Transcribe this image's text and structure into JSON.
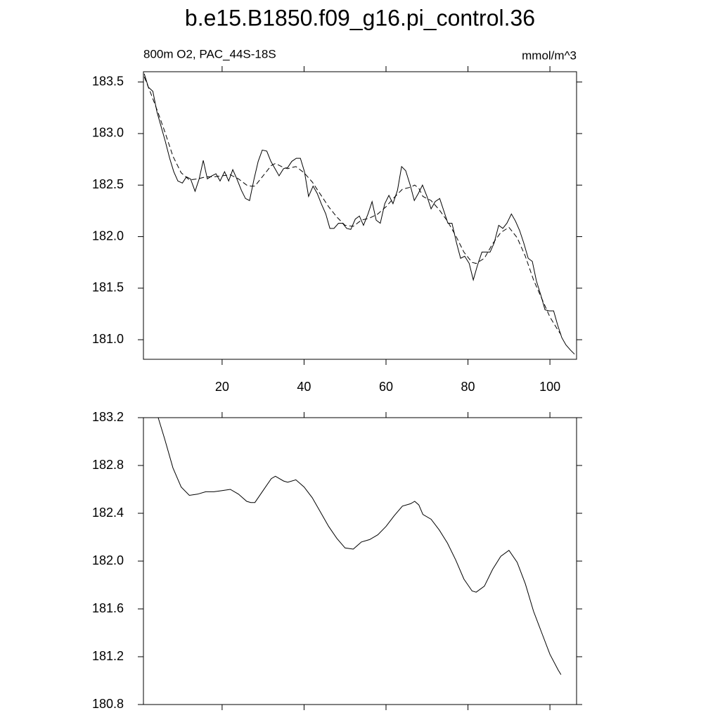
{
  "chart_data": [
    {
      "type": "line",
      "title": "b.e15.B1850.f09_g16.pi_control.36",
      "subtitle": "800m O2, PAC_44S-18S",
      "units": "mmol/m^3",
      "xlim": [
        0.8,
        106.5
      ],
      "xticks": [
        20,
        40,
        60,
        80,
        100
      ],
      "ylim": [
        180.81,
        183.6
      ],
      "yticks": [
        {
          "value": 181,
          "label": "181.0"
        },
        181.5,
        {
          "value": 182,
          "label": "182.0"
        },
        182.5,
        {
          "value": 183,
          "label": "183.0"
        },
        183.5
      ],
      "series": [
        {
          "color": "#000000",
          "x": [
            1,
            2,
            3.1,
            4.1,
            5.1,
            6.1,
            7.2,
            8.2,
            9.2,
            10.3,
            11.3,
            12.3,
            13.4,
            14.4,
            15.4,
            16.4,
            17.5,
            18.5,
            19.5,
            20.6,
            21.6,
            22.6,
            23.6,
            24.7,
            25.7,
            26.7,
            27.8,
            28.8,
            29.8,
            30.9,
            31.9,
            32.9,
            33.9,
            35,
            36,
            37,
            38.1,
            39.1,
            40.1,
            41.1,
            42.2,
            43.2,
            44.2,
            45.3,
            46.3,
            47.3,
            48.4,
            49.4,
            50.4,
            51.4,
            52.5,
            53.5,
            54.5,
            55.6,
            56.6,
            57.6,
            58.6,
            59.7,
            60.7,
            61.7,
            62.8,
            63.8,
            64.8,
            65.9,
            66.9,
            67.9,
            68.9,
            70,
            71,
            72,
            73.1,
            74.1,
            75.1,
            76.1,
            77.2,
            78.2,
            79.2,
            80.3,
            81.3,
            82.3,
            83.4,
            84.4,
            85.4,
            86.4,
            87.5,
            88.5,
            89.5,
            90.6,
            91.6,
            92.6,
            93.6,
            94.7,
            95.7,
            96.7,
            97.8,
            98.8,
            99.8,
            100.9,
            101.9,
            102.9,
            103.9,
            105,
            106
          ],
          "values": [
            183.58,
            183.45,
            183.41,
            183.21,
            183.07,
            182.93,
            182.76,
            182.63,
            182.54,
            182.52,
            182.58,
            182.56,
            182.44,
            182.56,
            182.74,
            182.56,
            182.59,
            182.61,
            182.54,
            182.63,
            182.54,
            182.65,
            182.56,
            182.45,
            182.37,
            182.35,
            182.56,
            182.73,
            182.84,
            182.83,
            182.73,
            182.66,
            182.59,
            182.66,
            182.67,
            182.73,
            182.76,
            182.76,
            182.63,
            182.39,
            182.49,
            182.42,
            182.32,
            182.22,
            182.08,
            182.08,
            182.13,
            182.13,
            182.08,
            182.07,
            182.17,
            182.2,
            182.11,
            182.22,
            182.34,
            182.16,
            182.13,
            182.32,
            182.4,
            182.32,
            182.45,
            182.68,
            182.64,
            182.5,
            182.35,
            182.42,
            182.5,
            182.39,
            182.27,
            182.34,
            182.37,
            182.25,
            182.13,
            182.13,
            181.94,
            181.79,
            181.81,
            181.74,
            181.58,
            181.72,
            181.85,
            181.85,
            181.85,
            181.94,
            182.11,
            182.08,
            182.13,
            182.22,
            182.15,
            182.06,
            181.94,
            181.79,
            181.76,
            181.57,
            181.43,
            181.29,
            181.28,
            181.28,
            181.14,
            181.02,
            180.95,
            180.9,
            180.86
          ]
        },
        {
          "color": "#000000",
          "dashed": true,
          "x": [
            1,
            2.5,
            4.4,
            6,
            8,
            10,
            12,
            14,
            16,
            18,
            20,
            22,
            24,
            26,
            27,
            28,
            30,
            32,
            33,
            35,
            36,
            38,
            40,
            42,
            44,
            46,
            48,
            50,
            52,
            54,
            56,
            58,
            60,
            62,
            64,
            66,
            67,
            68,
            69,
            71,
            73,
            75,
            77,
            79,
            81,
            82,
            84,
            86,
            88,
            90,
            92,
            94,
            96,
            98,
            100,
            102,
            102.7
          ],
          "values": [
            183.55,
            183.4,
            183.2,
            183.02,
            182.78,
            182.62,
            182.55,
            182.56,
            182.58,
            182.58,
            182.59,
            182.6,
            182.56,
            182.5,
            182.49,
            182.49,
            182.59,
            182.69,
            182.71,
            182.67,
            182.66,
            182.68,
            182.62,
            182.53,
            182.41,
            182.29,
            182.19,
            182.11,
            182.1,
            182.16,
            182.18,
            182.22,
            182.29,
            182.38,
            182.46,
            182.48,
            182.5,
            182.47,
            182.39,
            182.35,
            182.26,
            182.15,
            182.01,
            181.85,
            181.75,
            181.74,
            181.79,
            181.93,
            182.04,
            182.09,
            181.99,
            181.81,
            181.58,
            181.4,
            181.22,
            181.09,
            181.05
          ]
        }
      ]
    },
    {
      "type": "line",
      "xlim": [
        0.8,
        106.5
      ],
      "xticks": [
        20,
        40,
        60,
        80,
        100
      ],
      "ylim": [
        180.8,
        183.2
      ],
      "yticks": [
        180.8,
        181.2,
        181.6,
        {
          "value": 182,
          "label": "182.0"
        },
        182.4,
        182.8,
        183.2
      ],
      "series": [
        {
          "color": "#000000",
          "x": [
            4.4,
            6,
            8,
            10,
            12,
            14,
            16,
            18,
            20,
            22,
            24,
            26,
            27,
            28,
            30,
            32,
            33,
            35,
            36,
            38,
            40,
            42,
            44,
            46,
            48,
            50,
            52,
            54,
            56,
            58,
            60,
            62,
            64,
            66,
            67,
            68,
            69,
            71,
            73,
            75,
            77,
            79,
            81,
            82,
            84,
            86,
            88,
            90,
            92,
            94,
            96,
            98,
            100,
            102,
            102.7
          ],
          "values": [
            183.2,
            183.02,
            182.78,
            182.62,
            182.55,
            182.56,
            182.58,
            182.58,
            182.59,
            182.6,
            182.56,
            182.5,
            182.49,
            182.49,
            182.59,
            182.69,
            182.71,
            182.67,
            182.66,
            182.68,
            182.62,
            182.53,
            182.41,
            182.29,
            182.19,
            182.11,
            182.1,
            182.16,
            182.18,
            182.22,
            182.29,
            182.38,
            182.46,
            182.48,
            182.5,
            182.47,
            182.39,
            182.35,
            182.26,
            182.15,
            182.01,
            181.85,
            181.75,
            181.74,
            181.79,
            181.93,
            182.04,
            182.09,
            181.99,
            181.81,
            181.58,
            181.4,
            181.22,
            181.09,
            181.05
          ]
        }
      ]
    }
  ]
}
